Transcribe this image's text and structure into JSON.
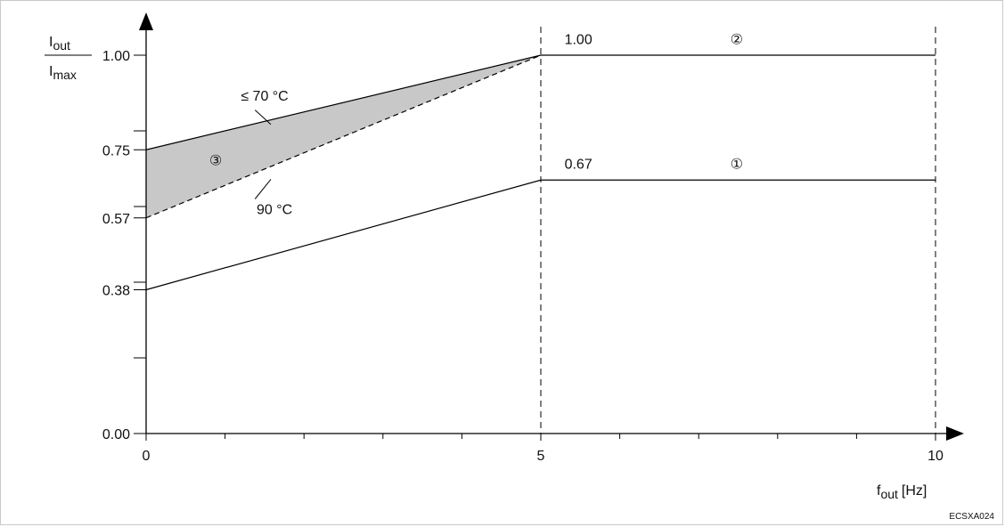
{
  "chart_data": {
    "type": "line",
    "x_axis": {
      "label": "f",
      "label_sub": "out",
      "label_unit": "[Hz]",
      "range": [
        0,
        10
      ],
      "ticks": [
        {
          "v": 0,
          "t": "0"
        },
        {
          "v": 5,
          "t": "5"
        },
        {
          "v": 10,
          "t": "10"
        }
      ],
      "minor_ticks": [
        1,
        2,
        3,
        4,
        6,
        7,
        8,
        9
      ]
    },
    "y_axis": {
      "label_num": "I",
      "label_num_sub": "out",
      "label_den": "I",
      "label_den_sub": "max",
      "range": [
        0,
        1
      ],
      "ticks": [
        {
          "v": 0.0,
          "t": "0.00"
        },
        {
          "v": 0.38,
          "t": "0.38"
        },
        {
          "v": 0.57,
          "t": "0.57"
        },
        {
          "v": 0.75,
          "t": "0.75"
        },
        {
          "v": 1.0,
          "t": "1.00"
        }
      ],
      "minor_ticks": [
        0.2,
        0.4,
        0.6,
        0.8
      ]
    },
    "series": [
      {
        "values": [
          [
            0,
            0.38
          ],
          [
            5,
            0.67
          ],
          [
            10,
            0.67
          ]
        ],
        "style": "solid",
        "color": "#000000"
      },
      {
        "values": [
          [
            0,
            0.75
          ],
          [
            5,
            1.0
          ],
          [
            10,
            1.0
          ]
        ],
        "style": "solid",
        "color": "#000000"
      },
      {
        "values": [
          [
            0,
            0.57
          ],
          [
            5,
            1.0
          ]
        ],
        "style": "dashed",
        "color": "#000000"
      }
    ],
    "shaded_region": {
      "upper": [
        [
          0,
          0.75
        ],
        [
          5,
          1.0
        ]
      ],
      "lower": [
        [
          0,
          0.57
        ],
        [
          5,
          1.0
        ]
      ],
      "color": "#c8c8c8"
    },
    "vertical_guides": [
      5,
      10
    ],
    "annotations": [
      {
        "text": "1.00",
        "x": 5.3,
        "y": 1.03
      },
      {
        "text": "②",
        "x": 7.4,
        "y": 1.03
      },
      {
        "text": "0.67",
        "x": 5.3,
        "y": 0.7
      },
      {
        "text": "①",
        "x": 7.4,
        "y": 0.7
      },
      {
        "text": "③",
        "x": 0.8,
        "y": 0.71
      },
      {
        "text": "≤ 70 °C",
        "x": 1.2,
        "y": 0.88
      },
      {
        "text": "90 °C",
        "x": 1.4,
        "y": 0.58
      }
    ],
    "annotation_leaders": [
      {
        "from": [
          1.38,
          0.855
        ],
        "to": [
          1.58,
          0.817
        ]
      },
      {
        "from": [
          1.38,
          0.62
        ],
        "to": [
          1.58,
          0.672
        ]
      }
    ]
  },
  "figure_code": "ECSXA024"
}
